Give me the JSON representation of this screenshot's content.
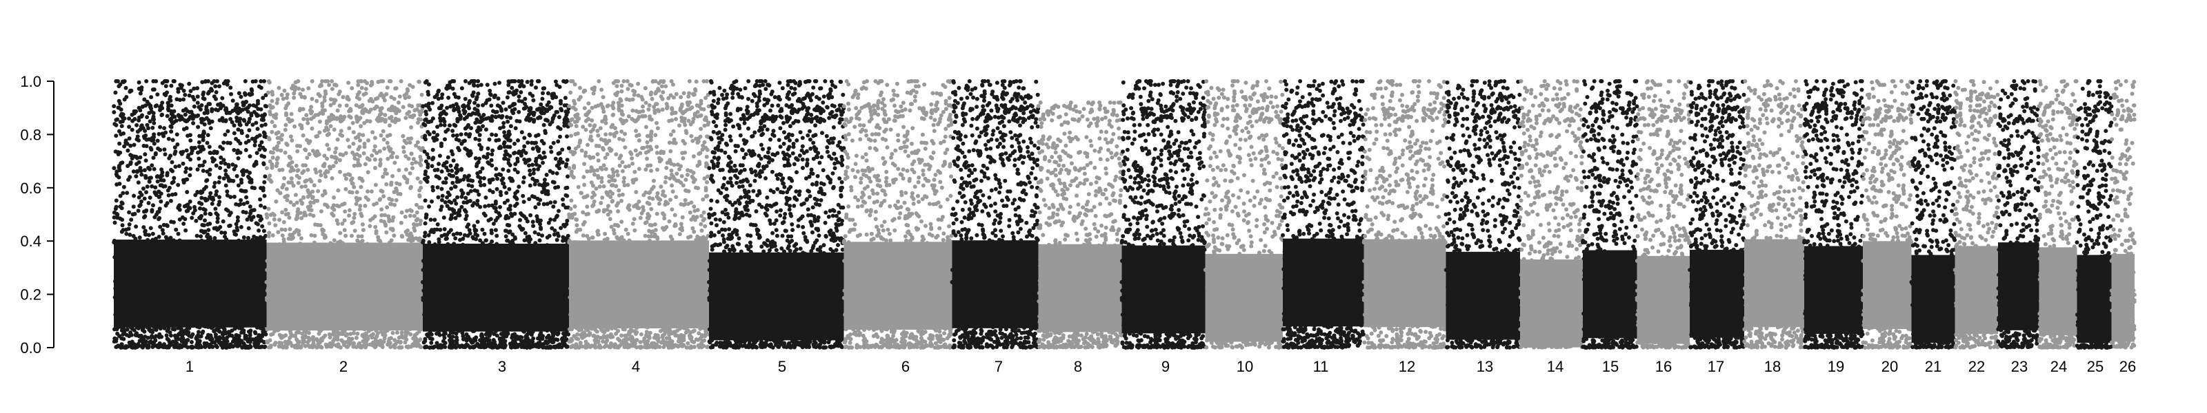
{
  "chart_data": {
    "type": "scatter",
    "title": "",
    "xlabel": "",
    "ylabel": "",
    "ylim": [
      0.0,
      1.0
    ],
    "yticks": [
      "0.0",
      "0.2",
      "0.4",
      "0.6",
      "0.8",
      "1.0"
    ],
    "grid": false,
    "legend": "none",
    "point_colors": [
      "#1a1a1a",
      "#999999"
    ],
    "categories": [
      "1",
      "2",
      "3",
      "4",
      "5",
      "6",
      "7",
      "8",
      "9",
      "10",
      "11",
      "12",
      "13",
      "14",
      "15",
      "16",
      "17",
      "18",
      "19",
      "20",
      "21",
      "22",
      "23",
      "24",
      "25",
      "26"
    ],
    "series": [
      {
        "category": "1",
        "color": "#1a1a1a",
        "density": 1.0,
        "max_y": 1.0
      },
      {
        "category": "2",
        "color": "#999999",
        "density": 0.85,
        "max_y": 1.0
      },
      {
        "category": "3",
        "color": "#1a1a1a",
        "density": 1.0,
        "max_y": 1.0
      },
      {
        "category": "4",
        "color": "#999999",
        "density": 0.85,
        "max_y": 1.0
      },
      {
        "category": "5",
        "color": "#1a1a1a",
        "density": 1.0,
        "max_y": 1.0
      },
      {
        "category": "6",
        "color": "#999999",
        "density": 0.75,
        "max_y": 1.0
      },
      {
        "category": "7",
        "color": "#1a1a1a",
        "density": 0.95,
        "max_y": 1.0
      },
      {
        "category": "8",
        "color": "#999999",
        "density": 0.75,
        "max_y": 0.92
      },
      {
        "category": "9",
        "color": "#1a1a1a",
        "density": 0.95,
        "max_y": 1.0
      },
      {
        "category": "10",
        "color": "#999999",
        "density": 0.7,
        "max_y": 1.0
      },
      {
        "category": "11",
        "color": "#1a1a1a",
        "density": 0.9,
        "max_y": 1.0
      },
      {
        "category": "12",
        "color": "#999999",
        "density": 0.7,
        "max_y": 1.0
      },
      {
        "category": "13",
        "color": "#1a1a1a",
        "density": 0.85,
        "max_y": 1.0
      },
      {
        "category": "14",
        "color": "#999999",
        "density": 0.75,
        "max_y": 1.0
      },
      {
        "category": "15",
        "color": "#1a1a1a",
        "density": 0.9,
        "max_y": 1.0
      },
      {
        "category": "16",
        "color": "#999999",
        "density": 0.75,
        "max_y": 1.0
      },
      {
        "category": "17",
        "color": "#1a1a1a",
        "density": 1.0,
        "max_y": 1.0
      },
      {
        "category": "18",
        "color": "#999999",
        "density": 0.75,
        "max_y": 1.0
      },
      {
        "category": "19",
        "color": "#1a1a1a",
        "density": 0.95,
        "max_y": 1.0
      },
      {
        "category": "20",
        "color": "#999999",
        "density": 0.8,
        "max_y": 1.0
      },
      {
        "category": "21",
        "color": "#1a1a1a",
        "density": 0.9,
        "max_y": 1.0
      },
      {
        "category": "22",
        "color": "#999999",
        "density": 0.8,
        "max_y": 1.0
      },
      {
        "category": "23",
        "color": "#1a1a1a",
        "density": 0.9,
        "max_y": 1.0
      },
      {
        "category": "24",
        "color": "#999999",
        "density": 0.85,
        "max_y": 1.0
      },
      {
        "category": "25",
        "color": "#1a1a1a",
        "density": 0.9,
        "max_y": 1.0
      },
      {
        "category": "26",
        "color": "#999999",
        "density": 0.8,
        "max_y": 1.0
      }
    ]
  }
}
